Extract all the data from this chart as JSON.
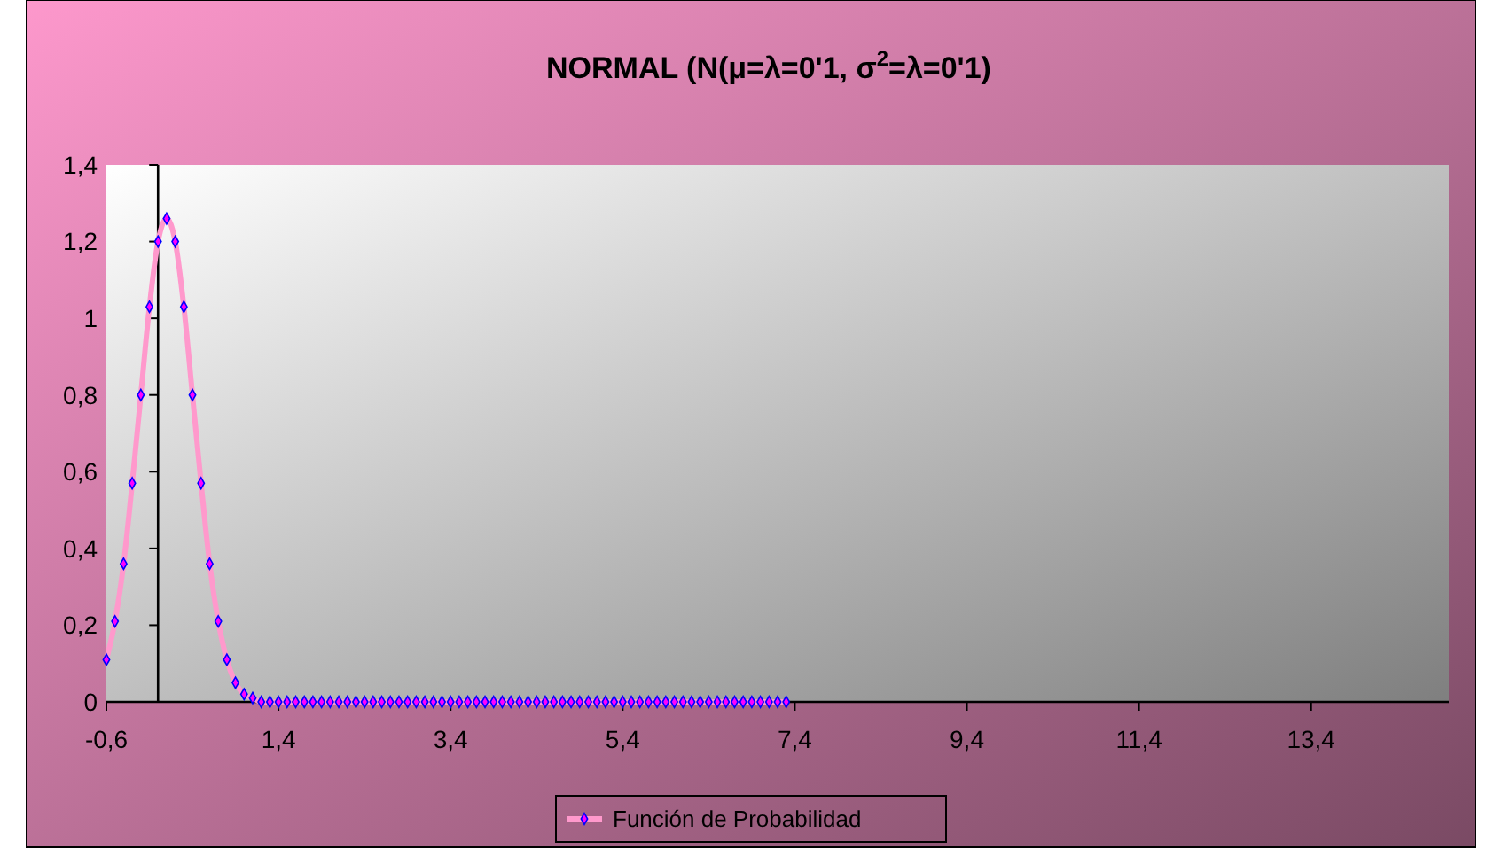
{
  "chart_data": {
    "type": "line",
    "title": "NORMAL (N(μ=λ=0'1, σ$^{2}$=λ=0'1)",
    "xlim": [
      -0.6,
      15
    ],
    "xticks": [
      {
        "value": -0.6,
        "label": "-0,6"
      },
      {
        "value": 1.4,
        "label": "1,4"
      },
      {
        "value": 3.4,
        "label": "3,4"
      },
      {
        "value": 5.4,
        "label": "5,4"
      },
      {
        "value": 7.4,
        "label": "7,4"
      },
      {
        "value": 9.4,
        "label": "9,4"
      },
      {
        "value": 11.4,
        "label": "11,4"
      },
      {
        "value": 13.4,
        "label": "13,4"
      }
    ],
    "ylim": [
      0,
      1.4
    ],
    "yticks": [
      0,
      {
        "value": 0.2,
        "label": "0,2"
      },
      {
        "value": 0.4,
        "label": "0,4"
      },
      {
        "value": 0.6,
        "label": "0,6"
      },
      {
        "value": 0.8,
        "label": "0,8"
      },
      1,
      {
        "value": 1.2,
        "label": "1,2"
      },
      {
        "value": 1.4,
        "label": "1,4"
      }
    ],
    "grid": false,
    "legend": "bottom",
    "marker": "diamond",
    "line_style": "solid",
    "x": [
      -0.6,
      -0.5,
      -0.4,
      -0.3,
      -0.2,
      -0.1,
      0,
      0.1,
      0.2,
      0.3,
      0.4,
      0.5,
      0.6,
      0.7,
      0.8,
      0.9,
      1,
      1.1,
      1.2,
      1.3,
      1.4,
      1.5,
      1.6,
      1.7,
      1.8,
      1.9,
      2,
      2.1,
      2.2,
      2.3,
      2.4,
      2.5,
      2.6,
      2.7,
      2.8,
      2.9,
      3,
      3.1,
      3.2,
      3.3,
      3.4,
      3.5,
      3.6,
      3.7,
      3.8,
      3.9,
      4,
      4.1,
      4.2,
      4.3,
      4.4,
      4.5,
      4.6,
      4.7,
      4.8,
      4.9,
      5,
      5.1,
      5.2,
      5.3,
      5.4,
      5.5,
      5.6,
      5.7,
      5.8,
      5.9,
      6,
      6.1,
      6.2,
      6.3,
      6.4,
      6.5,
      6.6,
      6.7,
      6.8,
      6.9,
      7,
      7.1,
      7.2,
      7.3
    ],
    "series": [
      {
        "name": "Función de Probabilidad",
        "color": "#ff99cc",
        "values": [
          0.11,
          0.21,
          0.36,
          0.57,
          0.8,
          1.03,
          1.2,
          1.26,
          1.2,
          1.03,
          0.8,
          0.57,
          0.36,
          0.21,
          0.11,
          0.05,
          0.02,
          0.01,
          0,
          0,
          0,
          0,
          0,
          0,
          0,
          0,
          0,
          0,
          0,
          0,
          0,
          0,
          0,
          0,
          0,
          0,
          0,
          0,
          0,
          0,
          0,
          0,
          0,
          0,
          0,
          0,
          0,
          0,
          0,
          0,
          0,
          0,
          0,
          0,
          0,
          0,
          0,
          0,
          0,
          0,
          0,
          0,
          0,
          0,
          0,
          0,
          0,
          0,
          0,
          0,
          0,
          0,
          0,
          0,
          0,
          0,
          0,
          0,
          0,
          0
        ]
      }
    ]
  }
}
